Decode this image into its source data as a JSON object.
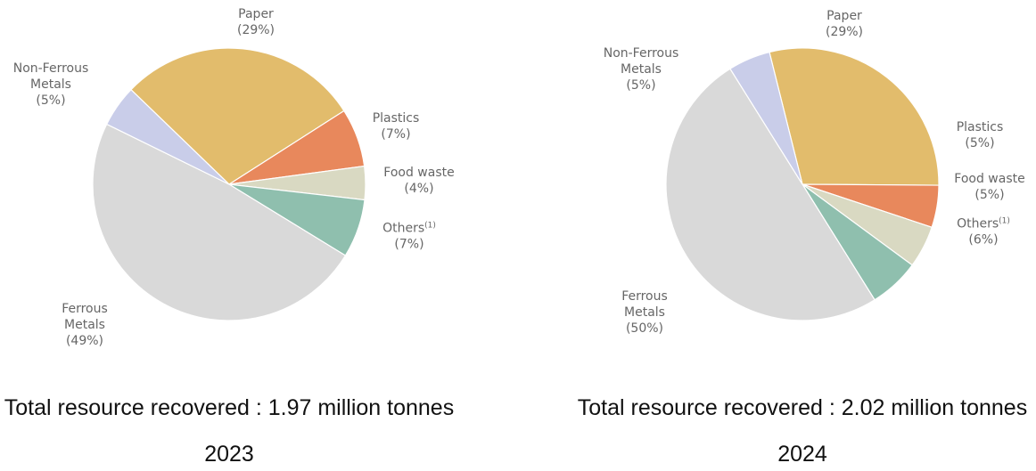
{
  "chart_data": [
    {
      "type": "pie",
      "title": "2023",
      "subtitle": "Total resource recovered : 1.97 million tonnes",
      "categories": [
        "Paper",
        "Plastics",
        "Food waste",
        "Others",
        "Ferrous Metals",
        "Non-Ferrous Metals"
      ],
      "category_notes": [
        null,
        null,
        null,
        "(1)",
        null,
        null
      ],
      "values": [
        29,
        7,
        4,
        7,
        49,
        5
      ],
      "value_labels": [
        "(29%)",
        "(7%)",
        "(4%)",
        "(7%)",
        "(49%)",
        "(5%)"
      ],
      "colors": [
        "#e2bc6c",
        "#e8885c",
        "#d9d9c2",
        "#8fbfae",
        "#d9d9d9",
        "#c9cde9"
      ]
    },
    {
      "type": "pie",
      "title": "2024",
      "subtitle": "Total resource recovered : 2.02 million tonnes",
      "categories": [
        "Paper",
        "Plastics",
        "Food waste",
        "Others",
        "Ferrous Metals",
        "Non-Ferrous Metals"
      ],
      "category_notes": [
        null,
        null,
        null,
        "(1)",
        null,
        null
      ],
      "values": [
        29,
        5,
        5,
        6,
        50,
        5
      ],
      "value_labels": [
        "(29%)",
        "(5%)",
        "(5%)",
        "(6%)",
        "(50%)",
        "(5%)"
      ],
      "colors": [
        "#e2bc6c",
        "#e8885c",
        "#d9d9c2",
        "#8fbfae",
        "#d9d9d9",
        "#c9cde9"
      ]
    }
  ]
}
